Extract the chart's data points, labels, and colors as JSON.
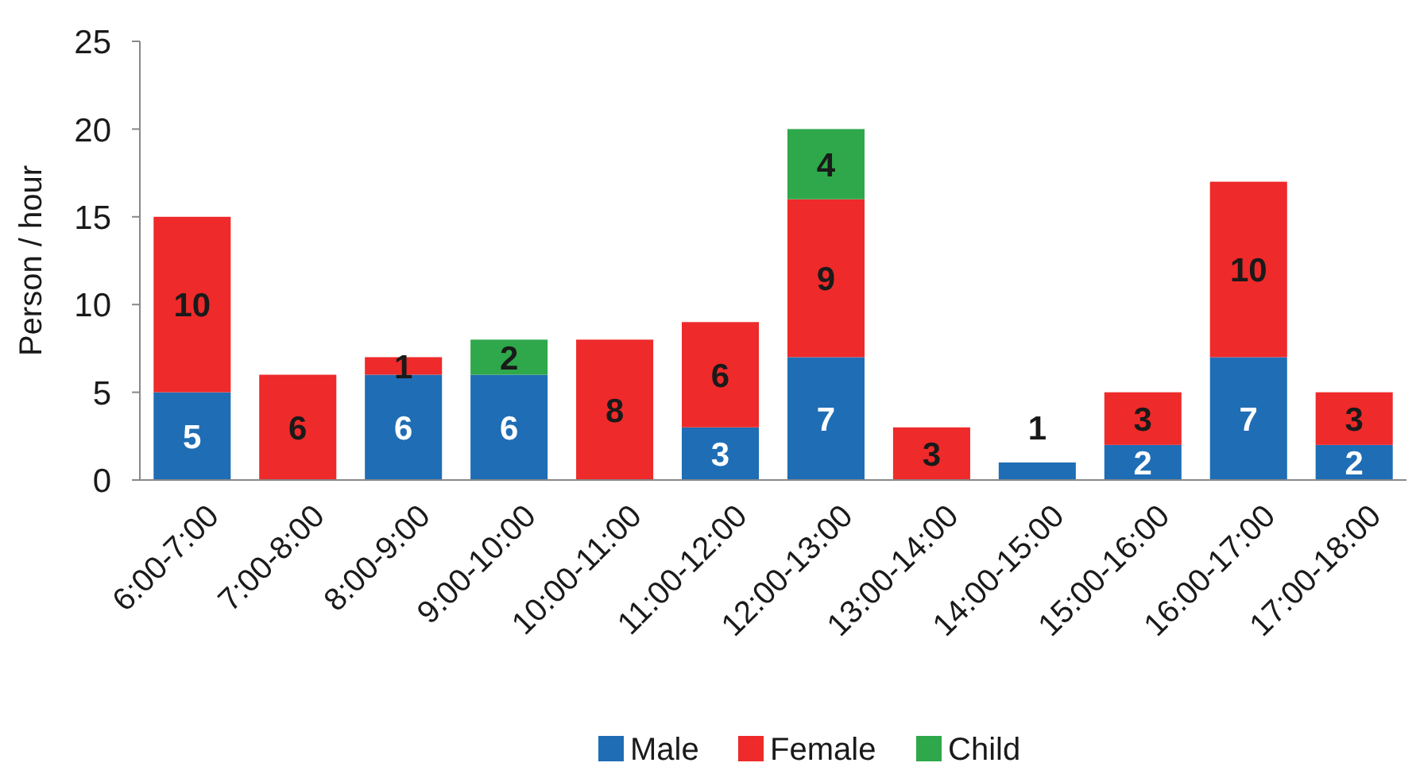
{
  "chart_data": {
    "type": "bar",
    "stacked": true,
    "ylabel": "Person / hour",
    "categories": [
      "6:00-7:00",
      "7:00-8:00",
      "8:00-9:00",
      "9:00-10:00",
      "10:00-11:00",
      "11:00-12:00",
      "12:00-13:00",
      "13:00-14:00",
      "14:00-15:00",
      "15:00-16:00",
      "16:00-17:00",
      "17:00-18:00"
    ],
    "series": [
      {
        "name": "Male",
        "color": "#1f6db5",
        "values": [
          5,
          null,
          6,
          6,
          null,
          3,
          7,
          null,
          1,
          2,
          7,
          2
        ],
        "value_labels": [
          "5",
          null,
          "6",
          "6",
          null,
          "3",
          "7",
          null,
          "1",
          "2",
          "7",
          "2"
        ]
      },
      {
        "name": "Female",
        "color": "#ee2a2a",
        "values": [
          10,
          6,
          1,
          null,
          8,
          6,
          9,
          3,
          null,
          3,
          10,
          3
        ],
        "value_labels": [
          "10",
          "6",
          "1",
          null,
          "8",
          "6",
          "9",
          "3",
          null,
          "3",
          "10",
          "3"
        ]
      },
      {
        "name": "Child",
        "color": "#2ea84a",
        "values": [
          null,
          null,
          null,
          2,
          null,
          null,
          4,
          null,
          null,
          null,
          null,
          null
        ],
        "value_labels": [
          null,
          null,
          null,
          "2",
          null,
          null,
          "4",
          null,
          null,
          null,
          null,
          null
        ]
      }
    ],
    "ylim": [
      0,
      25
    ],
    "yticks": [
      0,
      5,
      10,
      15,
      20,
      25
    ],
    "grid": false,
    "legend": "bottom"
  }
}
